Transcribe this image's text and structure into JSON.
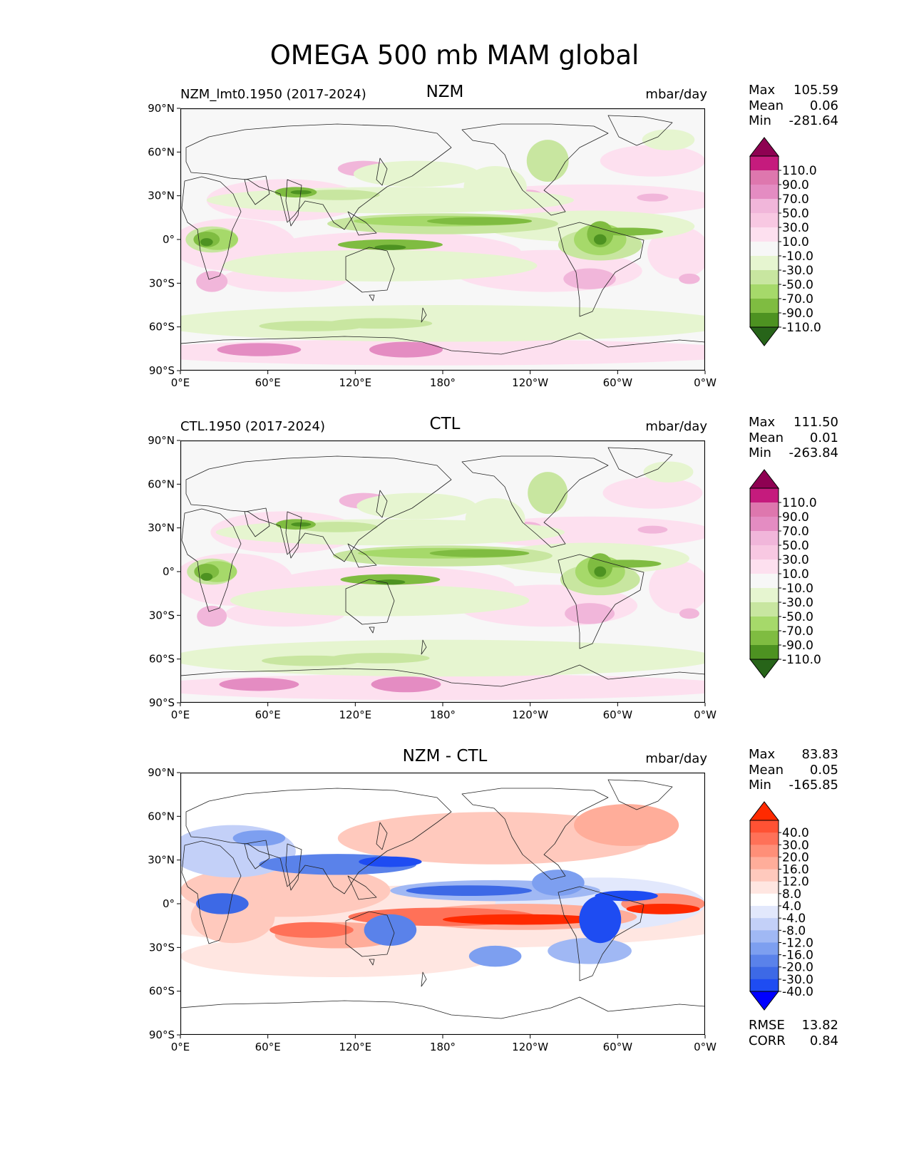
{
  "title": "OMEGA 500 mb MAM global",
  "colors": {
    "land_line": "#222222",
    "omega_levels": [
      "#276419",
      "#4d9221",
      "#7fbc41",
      "#a6d96a",
      "#c8e6a0",
      "#e6f5d0",
      "#f7f7f7",
      "#fde0ef",
      "#f8c8e2",
      "#f1b6da",
      "#e48cc2",
      "#de77ae",
      "#c51b7d",
      "#8e0152"
    ],
    "diff_levels": [
      "#0000ff",
      "#1e4cf2",
      "#3d69e6",
      "#5a82ea",
      "#7d9ff0",
      "#a0b8f4",
      "#c3d0f8",
      "#e2e8fc",
      "#ffffff",
      "#ffe6e1",
      "#ffc9bd",
      "#ffad9a",
      "#ff8f78",
      "#ff7158",
      "#ff5234",
      "#ff2a00"
    ]
  },
  "panels": [
    {
      "id": "nzm",
      "left_title": "NZM_lmt0.1950 (2017-2024)",
      "center_title": "NZM",
      "units": "mbar/day",
      "stats": [
        {
          "label": "Max",
          "value": "105.59"
        },
        {
          "label": "Mean",
          "value": "0.06"
        },
        {
          "label": "Min",
          "value": "-281.64"
        }
      ],
      "colorbar_labels": [
        "110.0",
        "90.0",
        "70.0",
        "50.0",
        "30.0",
        "10.0",
        "-10.0",
        "-30.0",
        "-50.0",
        "-70.0",
        "-90.0",
        "-110.0"
      ]
    },
    {
      "id": "ctl",
      "left_title": "CTL.1950 (2017-2024)",
      "center_title": "CTL",
      "units": "mbar/day",
      "stats": [
        {
          "label": "Max",
          "value": "111.50"
        },
        {
          "label": "Mean",
          "value": "0.01"
        },
        {
          "label": "Min",
          "value": "-263.84"
        }
      ],
      "colorbar_labels": [
        "110.0",
        "90.0",
        "70.0",
        "50.0",
        "30.0",
        "10.0",
        "-10.0",
        "-30.0",
        "-50.0",
        "-70.0",
        "-90.0",
        "-110.0"
      ]
    },
    {
      "id": "diff",
      "left_title": "",
      "center_title": "NZM - CTL",
      "units": "mbar/day",
      "stats": [
        {
          "label": "Max",
          "value": "83.83"
        },
        {
          "label": "Mean",
          "value": "0.05"
        },
        {
          "label": "Min",
          "value": "-165.85"
        }
      ],
      "colorbar_labels": [
        "40.0",
        "30.0",
        "20.0",
        "16.0",
        "12.0",
        "8.0",
        "4.0",
        "-4.0",
        "-8.0",
        "-12.0",
        "-16.0",
        "-20.0",
        "-30.0",
        "-40.0"
      ],
      "metrics": [
        {
          "label": "RMSE",
          "value": "13.82"
        },
        {
          "label": "CORR",
          "value": "0.84"
        }
      ]
    }
  ],
  "axes": {
    "lat_ticks": [
      "90°N",
      "60°N",
      "30°N",
      "0°",
      "30°S",
      "60°S",
      "90°S"
    ],
    "lon_ticks": [
      "0°E",
      "60°E",
      "120°E",
      "180°",
      "120°W",
      "60°W",
      "0°W"
    ]
  }
}
